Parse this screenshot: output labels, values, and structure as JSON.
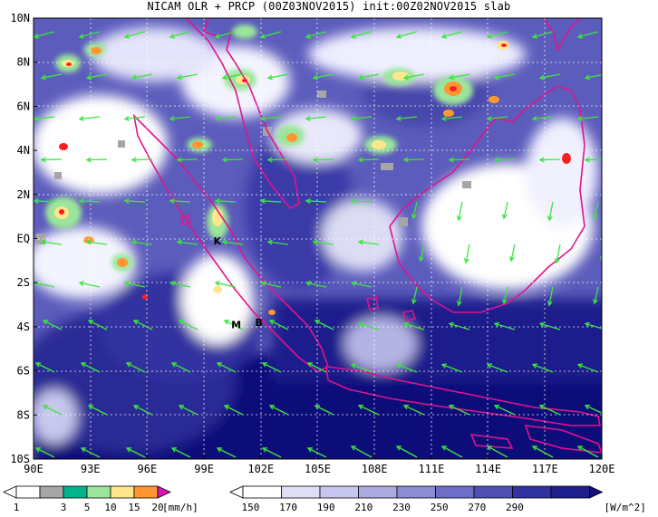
{
  "title": "NICAM OLR + PRCP (00Z03NOV2015) init:00Z02NOV2015 slab",
  "lat_labels": [
    "10N",
    "8N",
    "6N",
    "4N",
    "2N",
    "EQ",
    "2S",
    "4S",
    "6S",
    "8S",
    "10S"
  ],
  "lon_labels": [
    "90E",
    "93E",
    "96E",
    "99E",
    "102E",
    "105E",
    "108E",
    "111E",
    "114E",
    "117E",
    "120E"
  ],
  "places": [
    {
      "name": "K",
      "lon": 99.7,
      "lat": -0.1
    },
    {
      "name": "M",
      "lon": 100.7,
      "lat": -3.9
    },
    {
      "name": "B",
      "lon": 101.9,
      "lat": -3.8
    }
  ],
  "prcp_scale": {
    "ticks": [
      "1",
      "3",
      "5",
      "10",
      "15",
      "20"
    ],
    "unit": "[mm/h]",
    "colors": [
      "#a6a6a6",
      "#00b48c",
      "#9be69b",
      "#ffe68c",
      "#ff9632",
      "#ff1e1e",
      "#dc14b4"
    ]
  },
  "olr_scale": {
    "ticks": [
      "150",
      "170",
      "190",
      "210",
      "230",
      "250",
      "270",
      "290"
    ],
    "unit": "[W/m^2]",
    "colors": [
      "#ffffff",
      "#dedef7",
      "#c6c6ee",
      "#aaaae0",
      "#8c8cd4",
      "#6e6ec8",
      "#5050b4",
      "#3232a0",
      "#1e1e8c",
      "#101078"
    ]
  },
  "colors": {
    "ocean_deep": "#0d0d78",
    "coast": "#e0148c",
    "wind": "#3ce63c",
    "grid": "#ffffff"
  }
}
